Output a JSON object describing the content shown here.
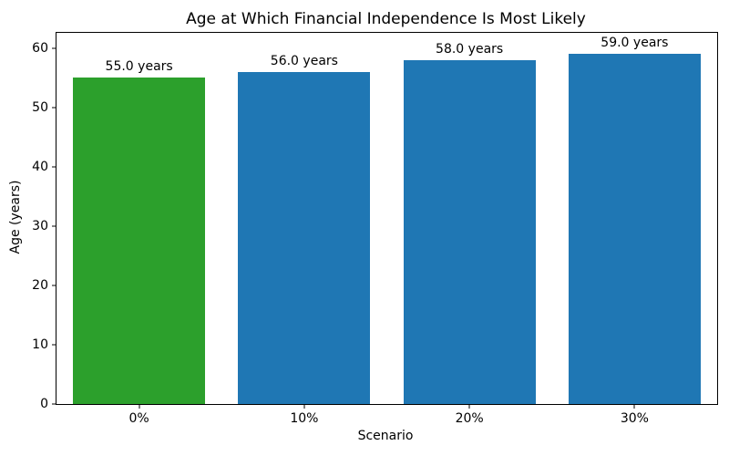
{
  "chart_data": {
    "type": "bar",
    "title": "Age at Which Financial Independence Is Most Likely",
    "xlabel": "Scenario",
    "ylabel": "Age (years)",
    "categories": [
      "0%",
      "10%",
      "20%",
      "30%"
    ],
    "values": [
      55.0,
      56.0,
      58.0,
      59.0
    ],
    "bar_labels": [
      "55.0 years",
      "56.0 years",
      "58.0 years",
      "59.0 years"
    ],
    "bar_colors": [
      "#2ca02c",
      "#1f77b4",
      "#1f77b4",
      "#1f77b4"
    ],
    "yticks": [
      0,
      10,
      20,
      30,
      40,
      50,
      60
    ],
    "ylim": [
      0,
      62.6
    ],
    "grid": false,
    "legend": "none",
    "spine_color": "#000000",
    "background_color": "#ffffff"
  }
}
